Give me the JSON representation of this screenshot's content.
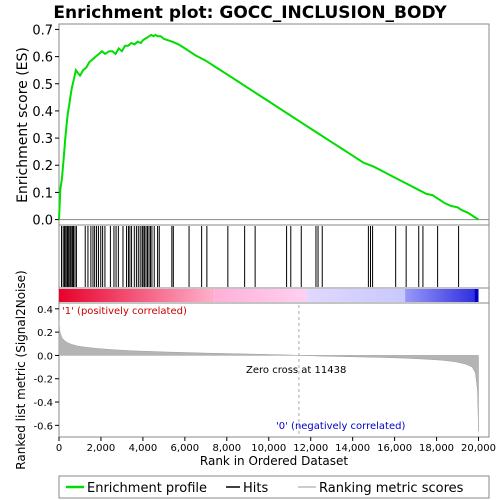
{
  "chart_data": {
    "type": "line",
    "title": "Enrichment plot: GOCC_INCLUSION_BODY",
    "top_panel": {
      "ylabel": "Enrichment score (ES)",
      "ylim": [
        -0.02,
        0.72
      ],
      "yticks": [
        "0.0",
        "0.1",
        "0.2",
        "0.3",
        "0.4",
        "0.5",
        "0.6",
        "0.7"
      ],
      "ytick_values": [
        0.0,
        0.1,
        0.2,
        0.3,
        0.4,
        0.5,
        0.6,
        0.7
      ],
      "series": [
        {
          "name": "Enrichment profile",
          "color": "#00dd00",
          "x": [
            0,
            60,
            140,
            230,
            300,
            360,
            420,
            480,
            540,
            600,
            660,
            720,
            800,
            900,
            1000,
            1150,
            1300,
            1450,
            1600,
            1750,
            1900,
            2050,
            2200,
            2400,
            2550,
            2700,
            2850,
            3000,
            3150,
            3300,
            3450,
            3600,
            3750,
            3900,
            4000,
            4100,
            4200,
            4300,
            4400,
            4500,
            4600,
            4700,
            4850,
            5000,
            5200,
            5400,
            5700,
            6000,
            6500,
            7000,
            7500,
            8000,
            8500,
            9000,
            9500,
            10000,
            10500,
            11000,
            11500,
            12000,
            12500,
            13000,
            13500,
            14000,
            14500,
            15000,
            15500,
            16000,
            16500,
            17000,
            17500,
            17800,
            18100,
            18400,
            18700,
            19000,
            19200,
            19500,
            19800,
            20000
          ],
          "y": [
            0.0,
            0.11,
            0.15,
            0.23,
            0.3,
            0.35,
            0.39,
            0.42,
            0.45,
            0.48,
            0.5,
            0.52,
            0.55,
            0.54,
            0.53,
            0.55,
            0.56,
            0.58,
            0.59,
            0.6,
            0.61,
            0.62,
            0.61,
            0.62,
            0.62,
            0.61,
            0.63,
            0.62,
            0.64,
            0.64,
            0.65,
            0.645,
            0.655,
            0.65,
            0.66,
            0.665,
            0.67,
            0.675,
            0.68,
            0.675,
            0.68,
            0.675,
            0.675,
            0.665,
            0.66,
            0.655,
            0.645,
            0.63,
            0.605,
            0.585,
            0.56,
            0.535,
            0.51,
            0.485,
            0.46,
            0.435,
            0.41,
            0.385,
            0.36,
            0.335,
            0.31,
            0.285,
            0.26,
            0.235,
            0.21,
            0.195,
            0.175,
            0.155,
            0.135,
            0.115,
            0.095,
            0.09,
            0.075,
            0.06,
            0.05,
            0.045,
            0.035,
            0.025,
            0.01,
            0.0
          ]
        }
      ]
    },
    "hits": [
      120,
      200,
      260,
      320,
      380,
      420,
      470,
      530,
      580,
      640,
      690,
      760,
      830,
      1250,
      1380,
      1520,
      1620,
      1700,
      1790,
      1880,
      1990,
      2080,
      2190,
      2450,
      2620,
      2720,
      2830,
      3050,
      3220,
      3310,
      3380,
      3460,
      3590,
      3690,
      3780,
      3870,
      3960,
      4010,
      4080,
      4150,
      4220,
      4290,
      4360,
      4430,
      4540,
      4700,
      4780,
      5380,
      5450,
      6200,
      6800,
      7050,
      8050,
      8850,
      9350,
      10850,
      11050,
      11550,
      12250,
      12350,
      12550,
      14750,
      14850,
      14950,
      16050,
      16550,
      17150,
      17350,
      18050,
      19050
    ],
    "bottom_panel": {
      "ylabel": "Ranked list metric (Signal2Noise)",
      "xlabel": "Rank in Ordered Dataset",
      "ylim": [
        -0.7,
        0.45
      ],
      "yticks": [
        "-0.6",
        "-0.4",
        "-0.2",
        "0.0",
        "0.2",
        "0.4"
      ],
      "ytick_values": [
        -0.6,
        -0.4,
        -0.2,
        0.0,
        0.2,
        0.4
      ],
      "metric_x": [
        0,
        30,
        80,
        150,
        250,
        400,
        600,
        900,
        1300,
        1800,
        2500,
        3500,
        5000,
        7000,
        9000,
        11000,
        11438,
        12500,
        14000,
        15500,
        16500,
        17500,
        18300,
        18900,
        19400,
        19700,
        19850,
        19950,
        20000
      ],
      "metric_y": [
        0.3,
        0.22,
        0.18,
        0.15,
        0.13,
        0.11,
        0.095,
        0.08,
        0.07,
        0.06,
        0.05,
        0.04,
        0.03,
        0.02,
        0.012,
        0.004,
        0.0,
        -0.006,
        -0.012,
        -0.018,
        -0.024,
        -0.032,
        -0.042,
        -0.055,
        -0.075,
        -0.1,
        -0.15,
        -0.3,
        -0.65
      ],
      "annotations": {
        "positive_label": "'1' (positively correlated)",
        "negative_label": "'0' (negatively correlated)",
        "zero_cross_label": "Zero cross at 11438",
        "zero_cross_x": 11438
      }
    },
    "xlim": [
      0,
      20500
    ],
    "xticks": [
      "0",
      "2,000",
      "4,000",
      "6,000",
      "8,000",
      "10,000",
      "12,000",
      "14,000",
      "16,000",
      "18,000",
      "20,000"
    ],
    "xtick_values": [
      0,
      2000,
      4000,
      6000,
      8000,
      10000,
      12000,
      14000,
      16000,
      18000,
      20000
    ],
    "gradient_bar": {
      "segments": [
        {
          "from": 0,
          "to": 7400,
          "start_color": "#e8002a",
          "end_color": "#ffb0cc"
        },
        {
          "from": 7400,
          "to": 11800,
          "start_color": "#ffb0d8",
          "end_color": "#ffd0f0"
        },
        {
          "from": 11800,
          "to": 16500,
          "start_color": "#e0d8ff",
          "end_color": "#c8c8ff"
        },
        {
          "from": 16500,
          "to": 19800,
          "start_color": "#9898f8",
          "end_color": "#3030e0"
        },
        {
          "from": 19800,
          "to": 20000,
          "start_color": "#0000c8",
          "end_color": "#0000c8"
        }
      ]
    },
    "legend": {
      "placement": "bottom",
      "entries": [
        {
          "label": "Enrichment profile",
          "color": "#00dd00"
        },
        {
          "label": "Hits",
          "color": "#000000"
        },
        {
          "label": "Ranking metric scores",
          "color": "#bbbbbb"
        }
      ]
    }
  }
}
